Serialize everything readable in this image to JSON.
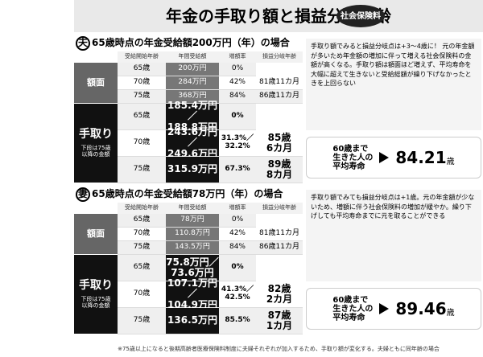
{
  "title": "年金の手取り額と損益分岐年齢",
  "badge": "社会保険料",
  "sections": [
    {
      "marker": "夫",
      "heading": "65歳時点の年金受給額200万円（年）の場合",
      "columns": [
        "受給開始年齢",
        "年間受給額",
        "増額率",
        "損益分岐年齢"
      ],
      "groups": [
        {
          "label": "額面",
          "rows": [
            [
              "65歳",
              "200万円",
              "0%"
            ],
            [
              "70歳",
              "284万円",
              "42%",
              "81歳11カ月"
            ],
            [
              "75歳",
              "368万円",
              "84%",
              "86歳11カ月"
            ]
          ]
        },
        {
          "label": "手取り",
          "sublabel": "下段は75歳以降の金額",
          "rows": [
            [
              "65歳",
              [
                "185.4万円／",
                "188.8万円"
              ],
              "0%"
            ],
            [
              "70歳",
              [
                "243.6万円／",
                "249.6万円"
              ],
              [
                "31.3%／",
                "32.2%"
              ],
              [
                "85歳",
                "6カ月"
              ]
            ],
            [
              "75歳",
              "315.9万円",
              "67.3%",
              [
                "89歳",
                "8カ月"
              ]
            ]
          ]
        }
      ],
      "note": "手取り額でみると損益分岐点は+3〜4歳に！ 元の年金額が多いため年金額の増加に伴って増える社会保険料の金額が高くなる。手取り額は額面ほど増えず、平均寿命を大幅に超えて生きないと受給総額が繰り下げなかったときを上回らない",
      "life": {
        "label": [
          "60歳まで",
          "生きた人の",
          "平均寿命"
        ],
        "value": "84.21",
        "unit": "歳"
      }
    },
    {
      "marker": "妻",
      "heading": "65歳時点の年金受給額78万円（年）の場合",
      "columns": [
        "受給開始年齢",
        "年間受給額",
        "増額率",
        "損益分岐年齢"
      ],
      "groups": [
        {
          "label": "額面",
          "rows": [
            [
              "65歳",
              "78万円",
              "0%"
            ],
            [
              "70歳",
              "110.8万円",
              "42%",
              "81歳11カ月"
            ],
            [
              "75歳",
              "143.5万円",
              "84%",
              "86歳11カ月"
            ]
          ]
        },
        {
          "label": "手取り",
          "sublabel": "下段は75歳以降の金額",
          "rows": [
            [
              "65歳",
              [
                "75.8万円／",
                "73.6万円"
              ],
              "0%"
            ],
            [
              "70歳",
              [
                "107.1万円／",
                "104.9万円"
              ],
              [
                "41.3%／",
                "42.5%"
              ],
              [
                "82歳",
                "2カ月"
              ]
            ],
            [
              "75歳",
              "136.5万円",
              "85.5%",
              [
                "87歳",
                "1カ月"
              ]
            ]
          ]
        }
      ],
      "note": "手取り額でみても損益分岐点は+1歳。元の年金額が少ないため、増額に伴う社会保険料の増加が緩やか。繰り下げしても平均寿命までに元を取ることができる",
      "life": {
        "label": [
          "60歳まで",
          "生きた人の",
          "平均寿命"
        ],
        "value": "89.46",
        "unit": "歳"
      }
    }
  ],
  "footnote": "※75歳以上になると後期高齢者医療保険料制度に夫婦それぞれが加入するため、手取り額が変化する。夫婦ともに同年齢の場合"
}
